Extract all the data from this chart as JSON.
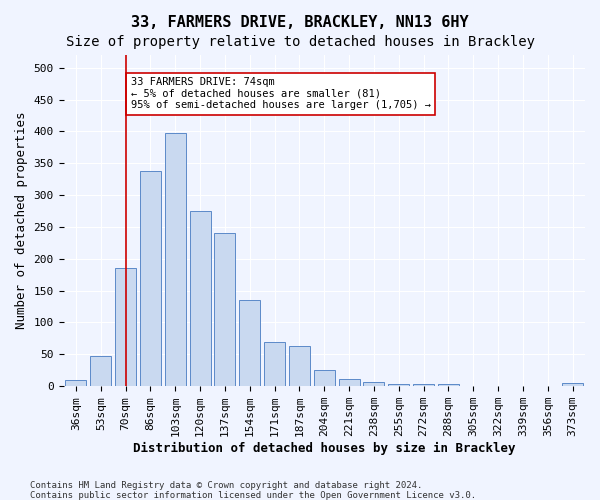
{
  "title1": "33, FARMERS DRIVE, BRACKLEY, NN13 6HY",
  "title2": "Size of property relative to detached houses in Brackley",
  "xlabel": "Distribution of detached houses by size in Brackley",
  "ylabel": "Number of detached properties",
  "categories": [
    "36sqm",
    "53sqm",
    "70sqm",
    "86sqm",
    "103sqm",
    "120sqm",
    "137sqm",
    "154sqm",
    "171sqm",
    "187sqm",
    "204sqm",
    "221sqm",
    "238sqm",
    "255sqm",
    "272sqm",
    "288sqm",
    "305sqm",
    "322sqm",
    "339sqm",
    "356sqm",
    "373sqm"
  ],
  "values": [
    10,
    47,
    185,
    338,
    397,
    275,
    240,
    136,
    70,
    63,
    26,
    12,
    6,
    4,
    4,
    4,
    0,
    0,
    0,
    0,
    5
  ],
  "bar_color": "#c9d9f0",
  "bar_edge_color": "#5b8ac9",
  "ylim": [
    0,
    520
  ],
  "yticks": [
    0,
    50,
    100,
    150,
    200,
    250,
    300,
    350,
    400,
    450,
    500
  ],
  "vline_x": 2,
  "vline_color": "#cc0000",
  "annotation_text": "33 FARMERS DRIVE: 74sqm\n← 5% of detached houses are smaller (81)\n95% of semi-detached houses are larger (1,705) →",
  "annotation_box_color": "#ffffff",
  "annotation_box_edge": "#cc0000",
  "footer1": "Contains HM Land Registry data © Crown copyright and database right 2024.",
  "footer2": "Contains public sector information licensed under the Open Government Licence v3.0.",
  "bg_color": "#f0f4ff",
  "plot_bg_color": "#f0f4ff",
  "title1_fontsize": 11,
  "title2_fontsize": 10,
  "xlabel_fontsize": 9,
  "ylabel_fontsize": 9,
  "tick_fontsize": 8
}
